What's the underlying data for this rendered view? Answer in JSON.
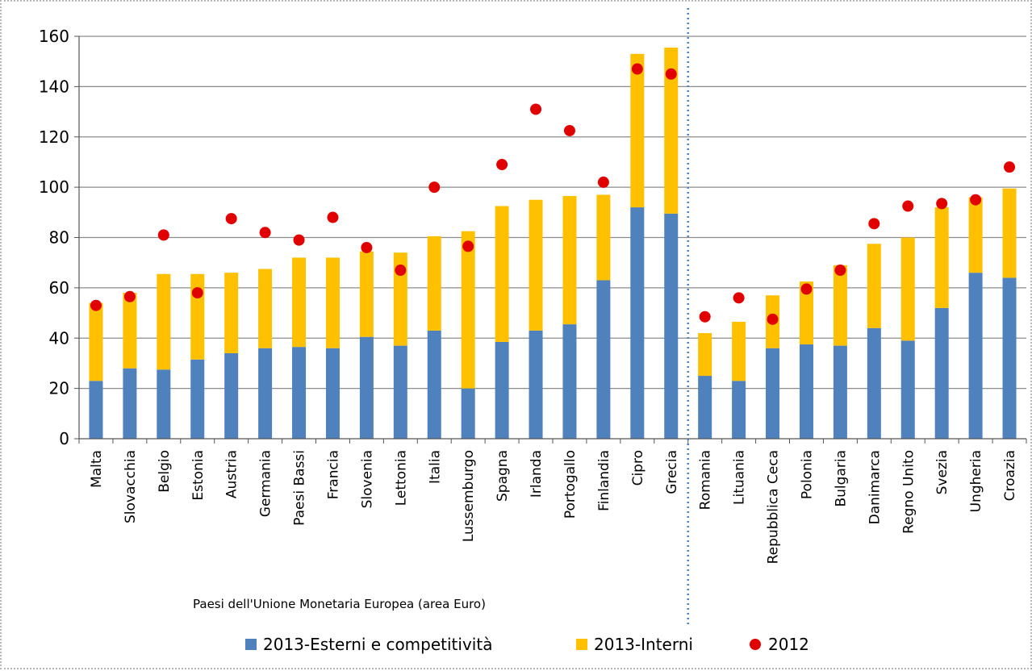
{
  "chart_data": {
    "type": "bar",
    "stacked": true,
    "ylim": [
      0,
      160
    ],
    "yticks": [
      0,
      20,
      40,
      60,
      80,
      100,
      120,
      140,
      160
    ],
    "grid": true,
    "legend_position": "bottom",
    "categories": [
      "Malta",
      "Slovacchia",
      "Belgio",
      "Estonia",
      "Austria",
      "Germania",
      "Paesi Bassi",
      "Francia",
      "Slovenia",
      "Lettonia",
      "Italia",
      "Lussemburgo",
      "Spagna",
      "Irlanda",
      "Portogallo",
      "Finlandia",
      "Cipro",
      "Grecia",
      "Romania",
      "Lituania",
      "Repubblica Ceca",
      "Polonia",
      "Bulgaria",
      "Danimarca",
      "Regno Unito",
      "Svezia",
      "Ungheria",
      "Croazia"
    ],
    "series": [
      {
        "name": "2013-Esterni e competitività",
        "kind": "bar",
        "color": "#4f81bd",
        "values": [
          23,
          28,
          27.5,
          31.5,
          34,
          36,
          36.5,
          36,
          40.5,
          37,
          43,
          20,
          38.5,
          43,
          45.5,
          63,
          92,
          89.5,
          25,
          23,
          36,
          37.5,
          37,
          44,
          39,
          52,
          66,
          64
        ]
      },
      {
        "name": "2013-Interni",
        "kind": "bar",
        "color": "#ffc000",
        "values": [
          31,
          30,
          38,
          34,
          32,
          31.5,
          35.5,
          36,
          34,
          37,
          37.5,
          62.5,
          54,
          52,
          51,
          34,
          61,
          66,
          17,
          23.5,
          21,
          25,
          32,
          33.5,
          41,
          40,
          30,
          35.5
        ]
      },
      {
        "name": "2012",
        "kind": "dot",
        "color": "#e00000",
        "values": [
          53,
          56.5,
          81,
          58,
          87.5,
          82,
          79,
          88,
          76,
          67,
          100,
          76.5,
          109,
          131,
          122.5,
          102,
          147,
          145,
          48.5,
          56,
          47.5,
          59.5,
          67,
          85.5,
          92.5,
          93.5,
          95,
          108
        ]
      }
    ],
    "annotations": [
      {
        "text": "Paesi dell'Unione Monetaria Europea (area Euro)"
      }
    ],
    "separator_after_category": "Grecia"
  }
}
